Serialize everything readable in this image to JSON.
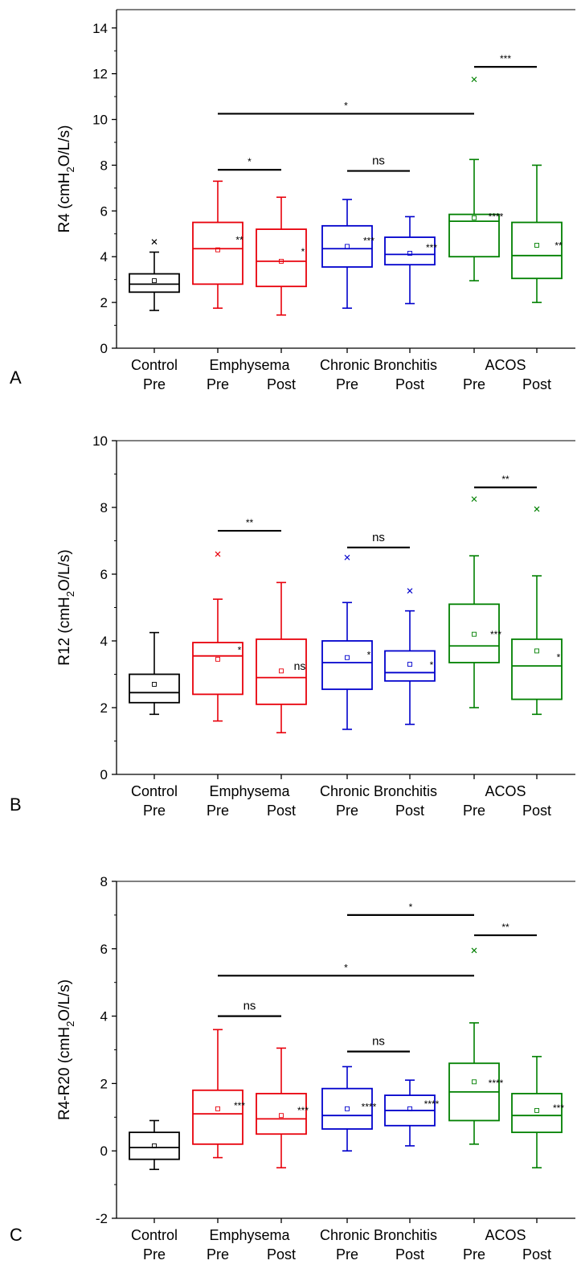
{
  "colors": {
    "Control": "#000000",
    "Emphysema": "#e8000b",
    "Chronic Bronchitis": "#0000cc",
    "ACOS": "#008000"
  },
  "chart_data": [
    {
      "type": "box",
      "panel_label": "A",
      "ylabel_main": "R4 (cmH",
      "ylabel_sub": "2",
      "ylabel_rest": "O/L/s)",
      "ylim": [
        0,
        14.8
      ],
      "yticks": [
        0,
        2,
        4,
        6,
        8,
        10,
        12,
        14
      ],
      "group_labels": [
        "Control",
        "Emphysema",
        "Chronic Bronchitis",
        "ACOS"
      ],
      "box_labels": [
        "Pre",
        "Pre",
        "Post",
        "Pre",
        "Post",
        "Pre",
        "Post"
      ],
      "boxes": [
        {
          "group": "Control",
          "whisker_low": 1.65,
          "q1": 2.45,
          "median": 2.8,
          "q3": 3.25,
          "whisker_high": 4.2,
          "mean": 2.95,
          "outliers": [
            4.65
          ],
          "sig": ""
        },
        {
          "group": "Emphysema",
          "whisker_low": 1.75,
          "q1": 2.8,
          "median": 4.35,
          "q3": 5.5,
          "whisker_high": 7.3,
          "mean": 4.3,
          "outliers": [],
          "sig": "**"
        },
        {
          "group": "Emphysema",
          "whisker_low": 1.45,
          "q1": 2.7,
          "median": 3.8,
          "q3": 5.2,
          "whisker_high": 6.6,
          "mean": 3.8,
          "outliers": [],
          "sig": "*"
        },
        {
          "group": "Chronic Bronchitis",
          "whisker_low": 1.75,
          "q1": 3.55,
          "median": 4.35,
          "q3": 5.35,
          "whisker_high": 6.5,
          "mean": 4.45,
          "outliers": [],
          "sig": "***"
        },
        {
          "group": "Chronic Bronchitis",
          "whisker_low": 1.95,
          "q1": 3.65,
          "median": 4.1,
          "q3": 4.85,
          "whisker_high": 5.75,
          "mean": 4.15,
          "outliers": [],
          "sig": "***"
        },
        {
          "group": "ACOS",
          "whisker_low": 2.95,
          "q1": 4.0,
          "median": 5.55,
          "q3": 5.85,
          "whisker_high": 8.25,
          "mean": 5.7,
          "outliers": [
            11.75
          ],
          "sig": "****"
        },
        {
          "group": "ACOS",
          "whisker_low": 2.0,
          "q1": 3.05,
          "median": 4.05,
          "q3": 5.5,
          "whisker_high": 8.0,
          "mean": 4.5,
          "outliers": [],
          "sig": "**"
        }
      ],
      "comparisons": [
        {
          "from": 5,
          "to": 6,
          "y": 12.3,
          "label": "***"
        },
        {
          "from": 1,
          "to": 5,
          "y": 10.25,
          "label": "*"
        },
        {
          "from": 1,
          "to": 2,
          "y": 7.8,
          "label": "*"
        },
        {
          "from": 3,
          "to": 4,
          "y": 7.75,
          "label": "ns"
        }
      ]
    },
    {
      "type": "box",
      "panel_label": "B",
      "ylabel_main": "R12 (cmH",
      "ylabel_sub": "2",
      "ylabel_rest": "O/L/s)",
      "ylim": [
        0,
        10
      ],
      "yticks": [
        0,
        2,
        4,
        6,
        8,
        10
      ],
      "group_labels": [
        "Control",
        "Emphysema",
        "Chronic Bronchitis",
        "ACOS"
      ],
      "box_labels": [
        "Pre",
        "Pre",
        "Post",
        "Pre",
        "Post",
        "Pre",
        "Post"
      ],
      "boxes": [
        {
          "group": "Control",
          "whisker_low": 1.8,
          "q1": 2.15,
          "median": 2.45,
          "q3": 3.0,
          "whisker_high": 4.25,
          "mean": 2.7,
          "outliers": [],
          "sig": ""
        },
        {
          "group": "Emphysema",
          "whisker_low": 1.6,
          "q1": 2.4,
          "median": 3.55,
          "q3": 3.95,
          "whisker_high": 5.25,
          "mean": 3.45,
          "outliers": [
            6.6
          ],
          "sig": "*"
        },
        {
          "group": "Emphysema",
          "whisker_low": 1.25,
          "q1": 2.1,
          "median": 2.9,
          "q3": 4.05,
          "whisker_high": 5.75,
          "mean": 3.1,
          "outliers": [],
          "sig": "ns"
        },
        {
          "group": "Chronic Bronchitis",
          "whisker_low": 1.35,
          "q1": 2.55,
          "median": 3.35,
          "q3": 4.0,
          "whisker_high": 5.15,
          "mean": 3.5,
          "outliers": [
            6.5
          ],
          "sig": "*"
        },
        {
          "group": "Chronic Bronchitis",
          "whisker_low": 1.5,
          "q1": 2.8,
          "median": 3.05,
          "q3": 3.7,
          "whisker_high": 4.9,
          "mean": 3.3,
          "outliers": [
            5.5
          ],
          "sig": "*"
        },
        {
          "group": "ACOS",
          "whisker_low": 2.0,
          "q1": 3.35,
          "median": 3.85,
          "q3": 5.1,
          "whisker_high": 6.55,
          "mean": 4.2,
          "outliers": [
            8.25
          ],
          "sig": "***"
        },
        {
          "group": "ACOS",
          "whisker_low": 1.8,
          "q1": 2.25,
          "median": 3.25,
          "q3": 4.05,
          "whisker_high": 5.95,
          "mean": 3.7,
          "outliers": [
            7.95
          ],
          "sig": "*"
        }
      ],
      "comparisons": [
        {
          "from": 5,
          "to": 6,
          "y": 8.6,
          "label": "**"
        },
        {
          "from": 1,
          "to": 2,
          "y": 7.3,
          "label": "**"
        },
        {
          "from": 3,
          "to": 4,
          "y": 6.8,
          "label": "ns"
        }
      ]
    },
    {
      "type": "box",
      "panel_label": "C",
      "ylabel_main": "R4-R20 (cmH",
      "ylabel_sub": "2",
      "ylabel_rest": "O/L/s)",
      "ylim": [
        -2,
        8
      ],
      "yticks": [
        -2,
        0,
        2,
        4,
        6,
        8
      ],
      "group_labels": [
        "Control",
        "Emphysema",
        "Chronic Bronchitis",
        "ACOS"
      ],
      "box_labels": [
        "Pre",
        "Pre",
        "Post",
        "Pre",
        "Post",
        "Pre",
        "Post"
      ],
      "boxes": [
        {
          "group": "Control",
          "whisker_low": -0.55,
          "q1": -0.25,
          "median": 0.1,
          "q3": 0.55,
          "whisker_high": 0.9,
          "mean": 0.15,
          "outliers": [],
          "sig": ""
        },
        {
          "group": "Emphysema",
          "whisker_low": -0.2,
          "q1": 0.2,
          "median": 1.1,
          "q3": 1.8,
          "whisker_high": 3.6,
          "mean": 1.25,
          "outliers": [],
          "sig": "***"
        },
        {
          "group": "Emphysema",
          "whisker_low": -0.5,
          "q1": 0.5,
          "median": 0.95,
          "q3": 1.7,
          "whisker_high": 3.05,
          "mean": 1.05,
          "outliers": [],
          "sig": "***"
        },
        {
          "group": "Chronic Bronchitis",
          "whisker_low": 0.0,
          "q1": 0.65,
          "median": 1.05,
          "q3": 1.85,
          "whisker_high": 2.5,
          "mean": 1.25,
          "outliers": [],
          "sig": "****"
        },
        {
          "group": "Chronic Bronchitis",
          "whisker_low": 0.15,
          "q1": 0.75,
          "median": 1.2,
          "q3": 1.65,
          "whisker_high": 2.1,
          "mean": 1.25,
          "outliers": [],
          "sig": "****"
        },
        {
          "group": "ACOS",
          "whisker_low": 0.2,
          "q1": 0.9,
          "median": 1.75,
          "q3": 2.6,
          "whisker_high": 3.8,
          "mean": 2.05,
          "outliers": [
            5.95
          ],
          "sig": "****"
        },
        {
          "group": "ACOS",
          "whisker_low": -0.5,
          "q1": 0.55,
          "median": 1.05,
          "q3": 1.7,
          "whisker_high": 2.8,
          "mean": 1.2,
          "outliers": [],
          "sig": "***"
        }
      ],
      "comparisons": [
        {
          "from": 3,
          "to": 5,
          "y": 7.0,
          "label": "*"
        },
        {
          "from": 5,
          "to": 6,
          "y": 6.4,
          "label": "**"
        },
        {
          "from": 1,
          "to": 5,
          "y": 5.2,
          "label": "*"
        },
        {
          "from": 1,
          "to": 2,
          "y": 4.0,
          "label": "ns"
        },
        {
          "from": 3,
          "to": 4,
          "y": 2.95,
          "label": "ns"
        }
      ]
    }
  ]
}
